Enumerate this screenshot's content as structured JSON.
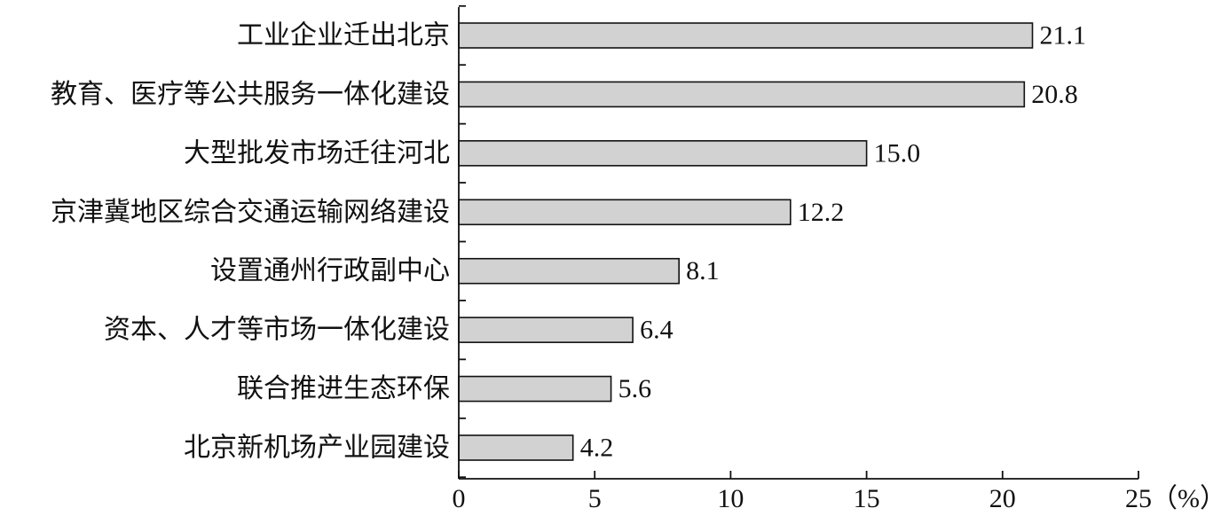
{
  "chart_data": {
    "type": "bar",
    "orientation": "horizontal",
    "title": "",
    "xlabel": "",
    "ylabel": "",
    "unit_label": "（%）",
    "xlim": [
      0,
      25
    ],
    "xticks": [
      0,
      5,
      10,
      15,
      20,
      25
    ],
    "grid": false,
    "bar_color": "#d2d2d2",
    "categories": [
      "工业企业迁出北京",
      "教育、医疗等公共服务一体化建设",
      "大型批发市场迁往河北",
      "京津冀地区综合交通运输网络建设",
      "设置通州行政副中心",
      "资本、人才等市场一体化建设",
      "联合推进生态环保",
      "北京新机场产业园建设"
    ],
    "values": [
      21.1,
      20.8,
      15.0,
      12.2,
      8.1,
      6.4,
      5.6,
      4.2
    ],
    "value_labels": [
      "21.1",
      "20.8",
      "15.0",
      "12.2",
      "8.1",
      "6.4",
      "5.6",
      "4.2"
    ]
  }
}
